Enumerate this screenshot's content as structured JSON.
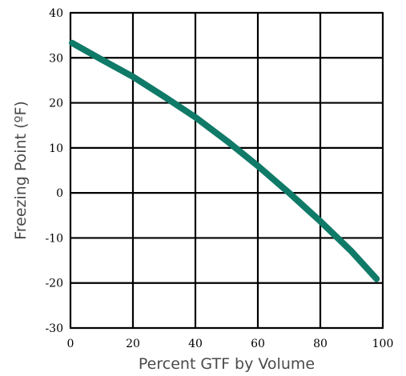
{
  "chart_data": {
    "type": "line",
    "title": "",
    "xlabel": "Percent GTF by Volume",
    "ylabel": "Freezing Point (ºF)",
    "xlim": [
      0,
      100
    ],
    "ylim": [
      -30,
      40
    ],
    "xticks": [
      0,
      20,
      40,
      60,
      80,
      100
    ],
    "yticks": [
      40,
      30,
      20,
      10,
      0,
      -10,
      -20,
      -30
    ],
    "xtick_labels": [
      "0",
      "20",
      "40",
      "60",
      "80",
      "100"
    ],
    "ytick_labels": [
      "40",
      "30",
      "20",
      "10",
      "0",
      "-10",
      "-20",
      "-30"
    ],
    "grid": true,
    "legend": "none",
    "series": [
      {
        "color": "#0f7a68",
        "x": [
          0.5,
          10,
          20,
          30,
          40,
          50,
          60,
          70,
          80,
          90,
          98
        ],
        "y": [
          33.3,
          29.6,
          25.8,
          21.4,
          16.8,
          11.6,
          6.0,
          0.0,
          -6.3,
          -13.0,
          -19.1
        ]
      }
    ]
  }
}
